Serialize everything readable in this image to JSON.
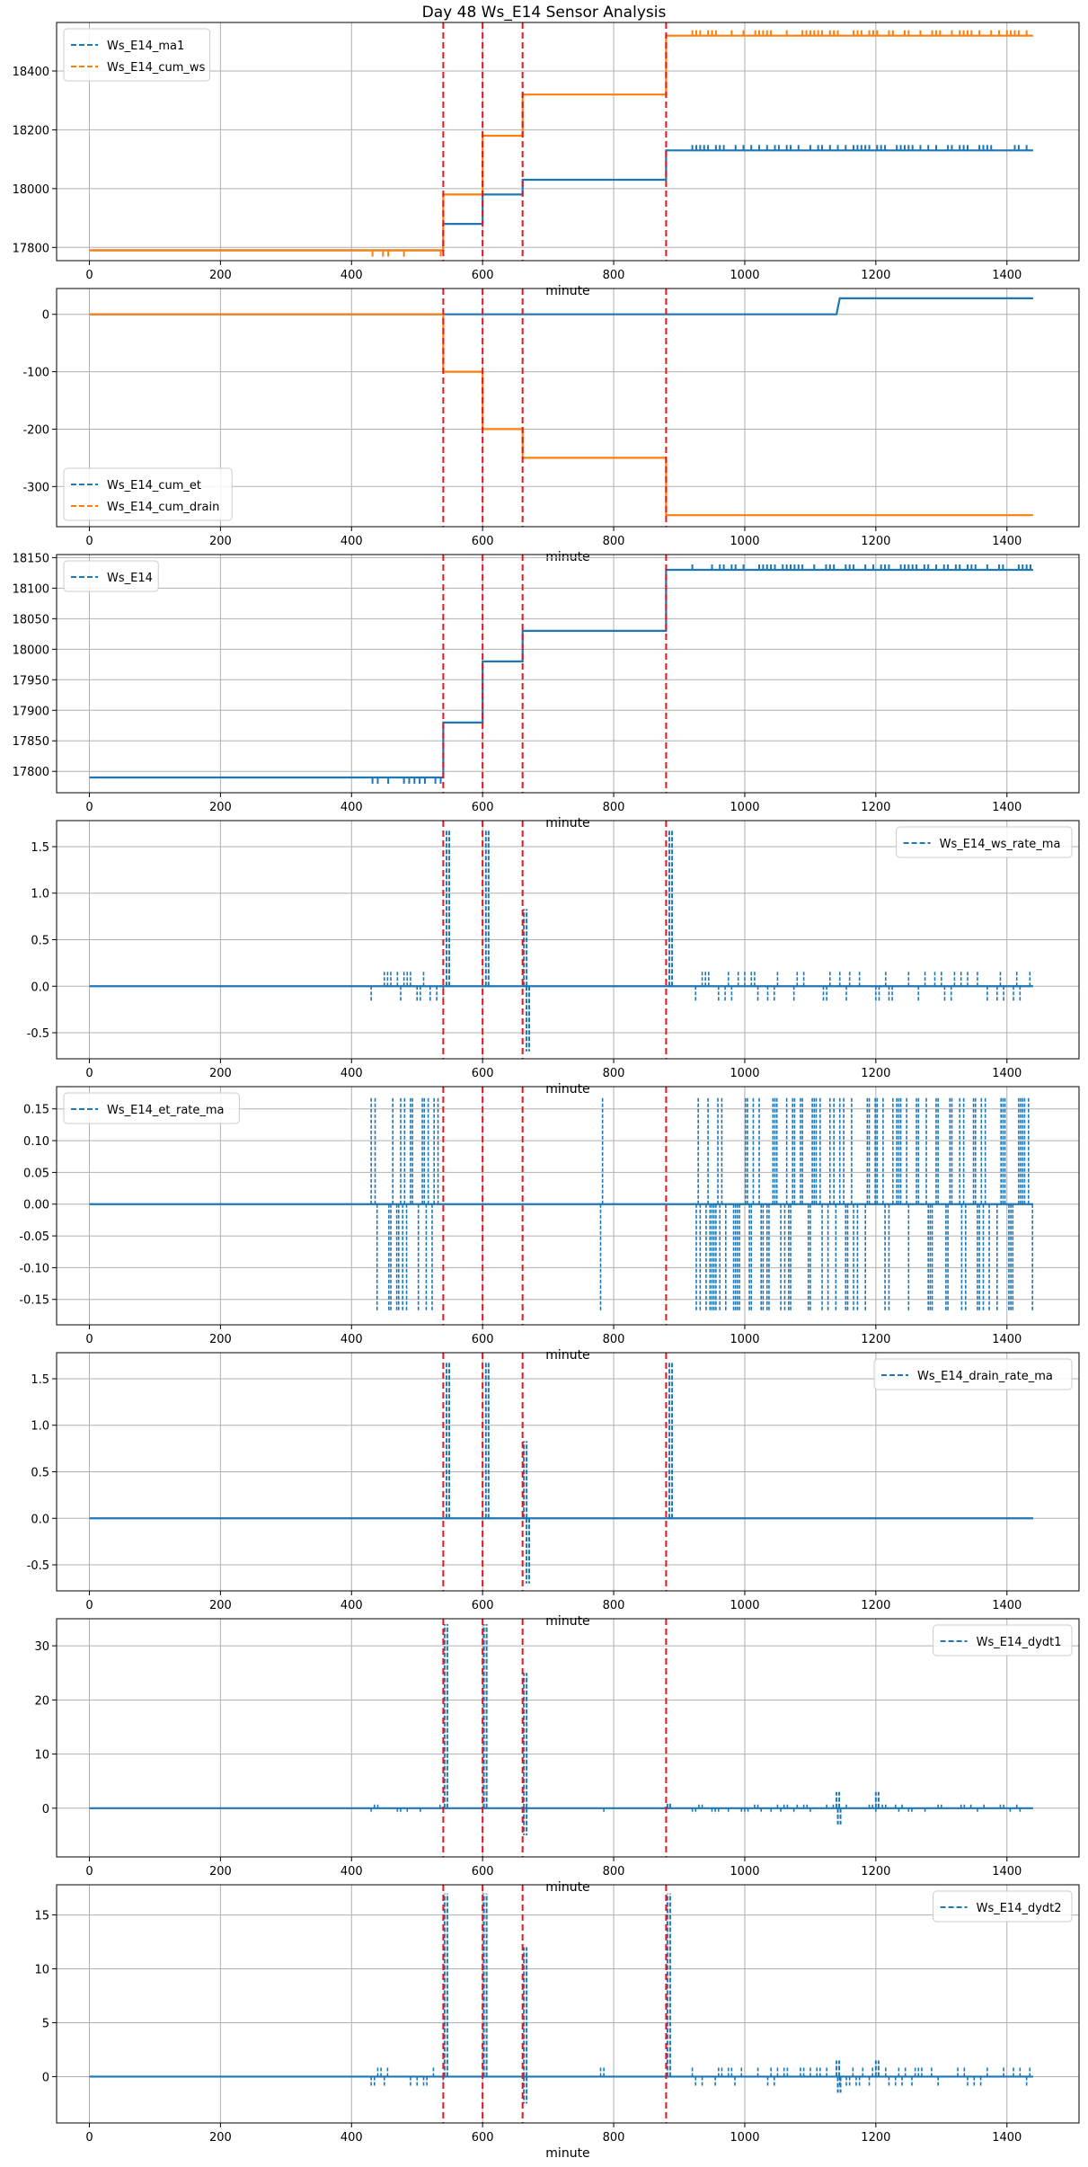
{
  "title": "Day 48 Ws_E14 Sensor Analysis",
  "colors": {
    "blue": "#1f77b4",
    "orange": "#ff7f0e",
    "vline": "#e8141c",
    "grid": "#b0b0b0"
  },
  "chart_data": [
    {
      "type": "line",
      "xlabel": "minute",
      "xlim": [
        -50,
        1510
      ],
      "xticks": [
        0,
        200,
        400,
        600,
        800,
        1000,
        1200,
        1400
      ],
      "ylim": [
        17755,
        18565
      ],
      "yticks": [
        17800,
        18000,
        18200,
        18400
      ],
      "ytick_labels": [
        "17800",
        "18000",
        "18200",
        "18400"
      ],
      "grid": true,
      "legend": "top-left",
      "vlines": [
        540,
        600,
        661,
        880
      ],
      "series": [
        {
          "name": "Ws_E14_ma1",
          "color": "blue",
          "style": "step",
          "points": [
            [
              0,
              17790
            ],
            [
              540,
              17790
            ],
            [
              540,
              17880
            ],
            [
              600,
              17880
            ],
            [
              600,
              17980
            ],
            [
              661,
              17980
            ],
            [
              661,
              18030
            ],
            [
              880,
              18030
            ],
            [
              880,
              18130
            ],
            [
              1440,
              18130
            ]
          ]
        },
        {
          "name": "Ws_E14_cum_ws",
          "color": "orange",
          "style": "step",
          "points": [
            [
              0,
              17790
            ],
            [
              540,
              17790
            ],
            [
              540,
              17980
            ],
            [
              600,
              17980
            ],
            [
              600,
              18180
            ],
            [
              661,
              18180
            ],
            [
              661,
              18320
            ],
            [
              880,
              18320
            ],
            [
              880,
              18520
            ],
            [
              1440,
              18520
            ]
          ]
        }
      ]
    },
    {
      "type": "line",
      "xlabel": "minute",
      "xlim": [
        -50,
        1510
      ],
      "xticks": [
        0,
        200,
        400,
        600,
        800,
        1000,
        1200,
        1400
      ],
      "ylim": [
        -370,
        45
      ],
      "yticks": [
        0,
        -100,
        -200,
        -300
      ],
      "ytick_labels": [
        "0",
        "-100",
        "-200",
        "-300"
      ],
      "grid": true,
      "legend": "bottom-left",
      "vlines": [
        540,
        600,
        661,
        880
      ],
      "series": [
        {
          "name": "Ws_E14_cum_et",
          "color": "blue",
          "style": "step",
          "points": [
            [
              0,
              0
            ],
            [
              1140,
              0
            ],
            [
              1145,
              28
            ],
            [
              1440,
              28
            ]
          ]
        },
        {
          "name": "Ws_E14_cum_drain",
          "color": "orange",
          "style": "step",
          "points": [
            [
              0,
              0
            ],
            [
              540,
              0
            ],
            [
              540,
              -100
            ],
            [
              600,
              -100
            ],
            [
              600,
              -200
            ],
            [
              661,
              -200
            ],
            [
              661,
              -250
            ],
            [
              880,
              -250
            ],
            [
              880,
              -350
            ],
            [
              1440,
              -350
            ]
          ]
        }
      ]
    },
    {
      "type": "line",
      "xlabel": "minute",
      "xlim": [
        -50,
        1510
      ],
      "xticks": [
        0,
        200,
        400,
        600,
        800,
        1000,
        1200,
        1400
      ],
      "ylim": [
        17765,
        18155
      ],
      "yticks": [
        17800,
        17850,
        17900,
        17950,
        18000,
        18050,
        18100,
        18150
      ],
      "ytick_labels": [
        "17800",
        "17850",
        "17900",
        "17950",
        "18000",
        "18050",
        "18100",
        "18150"
      ],
      "grid": true,
      "legend": "top-left",
      "vlines": [
        540,
        600,
        661,
        880
      ],
      "series": [
        {
          "name": "Ws_E14",
          "color": "blue",
          "style": "step",
          "points": [
            [
              0,
              17790
            ],
            [
              540,
              17790
            ],
            [
              540,
              17880
            ],
            [
              600,
              17880
            ],
            [
              600,
              17980
            ],
            [
              661,
              17980
            ],
            [
              661,
              18030
            ],
            [
              880,
              18030
            ],
            [
              880,
              18130
            ],
            [
              1440,
              18130
            ]
          ]
        }
      ]
    },
    {
      "type": "line",
      "xlabel": "minute",
      "xlim": [
        -50,
        1510
      ],
      "xticks": [
        0,
        200,
        400,
        600,
        800,
        1000,
        1200,
        1400
      ],
      "ylim": [
        -0.78,
        1.78
      ],
      "yticks": [
        -0.5,
        0.0,
        0.5,
        1.0,
        1.5
      ],
      "ytick_labels": [
        "-0.5",
        "0.0",
        "0.5",
        "1.0",
        "1.5"
      ],
      "grid": true,
      "legend": "top-right",
      "vlines": [
        540,
        600,
        661,
        880
      ],
      "series": [
        {
          "name": "Ws_E14_ws_rate_ma",
          "color": "blue",
          "style": "noisy",
          "base": 0,
          "noise": [
            -0.17,
            0.17
          ],
          "noise_ranges": [
            [
              430,
              540
            ],
            [
              780,
              785
            ],
            [
              920,
              1440
            ]
          ],
          "spikes": [
            [
              545,
              1.67
            ],
            [
              605,
              1.67
            ],
            [
              663,
              0.83
            ],
            [
              667,
              -0.7
            ],
            [
              885,
              1.67
            ]
          ]
        }
      ]
    },
    {
      "type": "line",
      "xlabel": "minute",
      "xlim": [
        -50,
        1510
      ],
      "xticks": [
        0,
        200,
        400,
        600,
        800,
        1000,
        1200,
        1400
      ],
      "ylim": [
        -0.19,
        0.185
      ],
      "yticks": [
        -0.15,
        -0.1,
        -0.05,
        0.0,
        0.05,
        0.1,
        0.15
      ],
      "ytick_labels": [
        "-0.15",
        "-0.10",
        "-0.05",
        "0.00",
        "0.05",
        "0.10",
        "0.15"
      ],
      "grid": true,
      "legend": "top-left",
      "vlines": [
        540,
        600,
        661,
        880
      ],
      "series": [
        {
          "name": "Ws_E14_et_rate_ma",
          "color": "blue",
          "style": "dense",
          "base": 0,
          "noise": [
            -0.167,
            0.167
          ],
          "noise_ranges": [
            [
              430,
              540
            ],
            [
              780,
              785
            ],
            [
              920,
              1440
            ]
          ]
        }
      ]
    },
    {
      "type": "line",
      "xlabel": "minute",
      "xlim": [
        -50,
        1510
      ],
      "xticks": [
        0,
        200,
        400,
        600,
        800,
        1000,
        1200,
        1400
      ],
      "ylim": [
        -0.78,
        1.78
      ],
      "yticks": [
        -0.5,
        0.0,
        0.5,
        1.0,
        1.5
      ],
      "ytick_labels": [
        "-0.5",
        "0.0",
        "0.5",
        "1.0",
        "1.5"
      ],
      "grid": true,
      "legend": "top-right",
      "vlines": [
        540,
        600,
        661,
        880
      ],
      "series": [
        {
          "name": "Ws_E14_drain_rate_ma",
          "color": "blue",
          "style": "noisy",
          "base": 0,
          "noise": [
            0,
            0
          ],
          "noise_ranges": [],
          "spikes": [
            [
              545,
              1.67
            ],
            [
              605,
              1.67
            ],
            [
              663,
              0.83
            ],
            [
              667,
              -0.7
            ],
            [
              885,
              1.67
            ]
          ]
        }
      ]
    },
    {
      "type": "line",
      "xlabel": "minute",
      "xlim": [
        -50,
        1510
      ],
      "xticks": [
        0,
        200,
        400,
        600,
        800,
        1000,
        1200,
        1400
      ],
      "ylim": [
        -9,
        35
      ],
      "yticks": [
        0,
        10,
        20,
        30
      ],
      "ytick_labels": [
        "0",
        "10",
        "20",
        "30"
      ],
      "grid": true,
      "legend": "top-right",
      "vlines": [
        540,
        600,
        661,
        880
      ],
      "series": [
        {
          "name": "Ws_E14_dydt1",
          "color": "blue",
          "style": "noisy",
          "base": 0,
          "noise": [
            -1,
            1
          ],
          "noise_ranges": [
            [
              430,
              540
            ],
            [
              780,
              785
            ],
            [
              920,
              1440
            ]
          ],
          "spikes": [
            [
              542,
              34
            ],
            [
              602,
              34
            ],
            [
              663,
              -5
            ],
            [
              663,
              25
            ],
            [
              882,
              1
            ],
            [
              1140,
              3
            ],
            [
              1142,
              -3
            ],
            [
              1200,
              3
            ]
          ]
        }
      ]
    },
    {
      "type": "line",
      "xlabel": "minute",
      "xlim": [
        -50,
        1510
      ],
      "xticks": [
        0,
        200,
        400,
        600,
        800,
        1000,
        1200,
        1400
      ],
      "ylim": [
        -4.3,
        17.8
      ],
      "yticks": [
        0,
        5,
        10,
        15
      ],
      "ytick_labels": [
        "0",
        "5",
        "10",
        "15"
      ],
      "grid": true,
      "legend": "top-right",
      "vlines": [
        540,
        600,
        661,
        880
      ],
      "series": [
        {
          "name": "Ws_E14_dydt2",
          "color": "blue",
          "style": "noisy",
          "base": 0,
          "noise": [
            -0.9,
            0.9
          ],
          "noise_ranges": [
            [
              430,
              540
            ],
            [
              780,
              785
            ],
            [
              920,
              1440
            ]
          ],
          "spikes": [
            [
              542,
              17
            ],
            [
              602,
              17
            ],
            [
              663,
              -2.5
            ],
            [
              663,
              12
            ],
            [
              882,
              17
            ],
            [
              1140,
              1.5
            ],
            [
              1142,
              -1.5
            ],
            [
              1200,
              1.5
            ]
          ]
        }
      ]
    }
  ]
}
